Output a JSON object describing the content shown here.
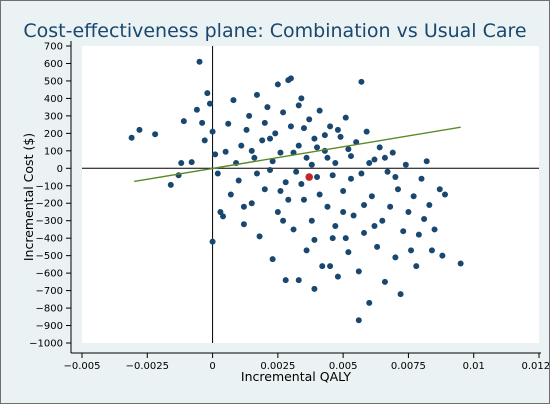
{
  "chart_data": {
    "type": "scatter",
    "title": "Cost-effectiveness plane: Combination vs Usual Care",
    "xlabel": "Incremental QALY",
    "ylabel": "Incremental Cost ($)",
    "xlim": [
      -0.005,
      0.0125
    ],
    "ylim": [
      -1000,
      700
    ],
    "x_ticks": [
      -0.005,
      -0.0025,
      0,
      0.0025,
      0.005,
      0.0075,
      0.01,
      0.0125
    ],
    "x_tick_labels": [
      "−0.005",
      "−0.0025",
      "0",
      "0.0025",
      "0.005",
      "0.0075",
      "0.01",
      "0.0125"
    ],
    "y_ticks": [
      700,
      600,
      500,
      400,
      300,
      200,
      100,
      0,
      -100,
      -200,
      -300,
      -400,
      -500,
      -600,
      -700,
      -800,
      -900,
      -1000
    ],
    "y_tick_labels": [
      "700",
      "600",
      "500",
      "400",
      "300",
      "200",
      "100",
      "0",
      "−100",
      "−200",
      "−300",
      "−400",
      "−500",
      "−600",
      "−700",
      "−800",
      "−900",
      "−1000"
    ],
    "reference_lines": {
      "x": 0,
      "y": 0
    },
    "series": [
      {
        "type": "scatter",
        "color": "#1a476f",
        "points": [
          [
            -0.0031,
            175
          ],
          [
            -0.0028,
            220
          ],
          [
            -0.0022,
            195
          ],
          [
            -0.0016,
            -95
          ],
          [
            -0.0013,
            -40
          ],
          [
            -0.0012,
            30
          ],
          [
            -0.0011,
            270
          ],
          [
            -0.0008,
            35
          ],
          [
            -0.0006,
            335
          ],
          [
            -0.0005,
            610
          ],
          [
            -0.0004,
            260
          ],
          [
            -0.0003,
            160
          ],
          [
            -0.0002,
            430
          ],
          [
            -0.0001,
            370
          ],
          [
            0.0,
            210
          ],
          [
            0.0,
            -420
          ],
          [
            0.0001,
            80
          ],
          [
            0.0002,
            -30
          ],
          [
            0.0003,
            -250
          ],
          [
            0.0004,
            -275
          ],
          [
            0.0005,
            95
          ],
          [
            0.0006,
            255
          ],
          [
            0.0007,
            -150
          ],
          [
            0.0008,
            390
          ],
          [
            0.0009,
            30
          ],
          [
            0.001,
            -70
          ],
          [
            0.0011,
            130
          ],
          [
            0.0012,
            -320
          ],
          [
            0.0013,
            220
          ],
          [
            0.0014,
            300
          ],
          [
            0.0015,
            -200
          ],
          [
            0.0016,
            60
          ],
          [
            0.0017,
            420
          ],
          [
            0.0018,
            -390
          ],
          [
            0.0019,
            160
          ],
          [
            0.002,
            -120
          ],
          [
            0.0021,
            350
          ],
          [
            0.0022,
            -10
          ],
          [
            0.0023,
            -520
          ],
          [
            0.0024,
            200
          ],
          [
            0.0025,
            480
          ],
          [
            0.0025,
            -250
          ],
          [
            0.0026,
            90
          ],
          [
            0.0027,
            320
          ],
          [
            0.0028,
            -640
          ],
          [
            0.0028,
            -80
          ],
          [
            0.0029,
            505
          ],
          [
            0.003,
            515
          ],
          [
            0.003,
            240
          ],
          [
            0.0031,
            -350
          ],
          [
            0.0032,
            -20
          ],
          [
            0.0033,
            130
          ],
          [
            0.0033,
            -640
          ],
          [
            0.0034,
            400
          ],
          [
            0.0035,
            -180
          ],
          [
            0.0036,
            60
          ],
          [
            0.0036,
            -470
          ],
          [
            0.0037,
            280
          ],
          [
            0.0038,
            -300
          ],
          [
            0.0039,
            170
          ],
          [
            0.0039,
            -690
          ],
          [
            0.004,
            -50
          ],
          [
            0.0041,
            330
          ],
          [
            0.0042,
            -560
          ],
          [
            0.0043,
            100
          ],
          [
            0.0044,
            -220
          ],
          [
            0.0045,
            240
          ],
          [
            0.0046,
            -400
          ],
          [
            0.0047,
            30
          ],
          [
            0.0048,
            -620
          ],
          [
            0.0049,
            180
          ],
          [
            0.005,
            -130
          ],
          [
            0.0051,
            290
          ],
          [
            0.0052,
            -480
          ],
          [
            0.0053,
            70
          ],
          [
            0.0054,
            -270
          ],
          [
            0.0055,
            150
          ],
          [
            0.0056,
            -870
          ],
          [
            0.0057,
            495
          ],
          [
            0.0057,
            -30
          ],
          [
            0.0058,
            -370
          ],
          [
            0.0059,
            210
          ],
          [
            0.006,
            -770
          ],
          [
            0.0061,
            -160
          ],
          [
            0.0062,
            50
          ],
          [
            0.0063,
            -450
          ],
          [
            0.0064,
            120
          ],
          [
            0.0065,
            -300
          ],
          [
            0.0066,
            -650
          ],
          [
            0.0067,
            -20
          ],
          [
            0.0068,
            -220
          ],
          [
            0.0069,
            90
          ],
          [
            0.007,
            -510
          ],
          [
            0.0071,
            -120
          ],
          [
            0.0072,
            -720
          ],
          [
            0.0073,
            -360
          ],
          [
            0.0074,
            20
          ],
          [
            0.0075,
            -250
          ],
          [
            0.0076,
            -470
          ],
          [
            0.0077,
            -160
          ],
          [
            0.0078,
            -560
          ],
          [
            0.0079,
            -380
          ],
          [
            0.008,
            -60
          ],
          [
            0.0081,
            -290
          ],
          [
            0.0082,
            40
          ],
          [
            0.0083,
            -210
          ],
          [
            0.0084,
            -470
          ],
          [
            0.0085,
            -350
          ],
          [
            0.0087,
            -120
          ],
          [
            0.0088,
            -500
          ],
          [
            0.0089,
            -150
          ],
          [
            0.0095,
            -545
          ],
          [
            0.0015,
            100
          ],
          [
            0.002,
            260
          ],
          [
            0.0023,
            40
          ],
          [
            0.0026,
            -130
          ],
          [
            0.0031,
            90
          ],
          [
            0.0034,
            -90
          ],
          [
            0.0038,
            20
          ],
          [
            0.0041,
            -150
          ],
          [
            0.0044,
            60
          ],
          [
            0.0046,
            -40
          ],
          [
            0.0048,
            220
          ],
          [
            0.005,
            -250
          ],
          [
            0.0053,
            -60
          ],
          [
            0.0027,
            -300
          ],
          [
            0.0033,
            360
          ],
          [
            0.0039,
            -410
          ],
          [
            0.0043,
            190
          ],
          [
            0.0047,
            -330
          ],
          [
            0.0052,
            110
          ],
          [
            0.0058,
            -210
          ],
          [
            0.0062,
            -330
          ],
          [
            0.0066,
            60
          ],
          [
            0.007,
            -50
          ],
          [
            0.0012,
            -220
          ],
          [
            0.0017,
            -30
          ],
          [
            0.0022,
            170
          ],
          [
            0.0029,
            -180
          ],
          [
            0.0035,
            230
          ],
          [
            0.004,
            120
          ],
          [
            0.0045,
            -560
          ],
          [
            0.0051,
            -400
          ],
          [
            0.0056,
            -590
          ],
          [
            0.006,
            30
          ]
        ]
      }
    ],
    "mean_point": {
      "x": 0.0037,
      "y": -50,
      "color": "#c0272d"
    },
    "threshold_line": {
      "x_range": [
        -0.003,
        0.0095
      ],
      "y_values": [
        -75,
        235
      ],
      "color": "#5a8a28"
    }
  }
}
